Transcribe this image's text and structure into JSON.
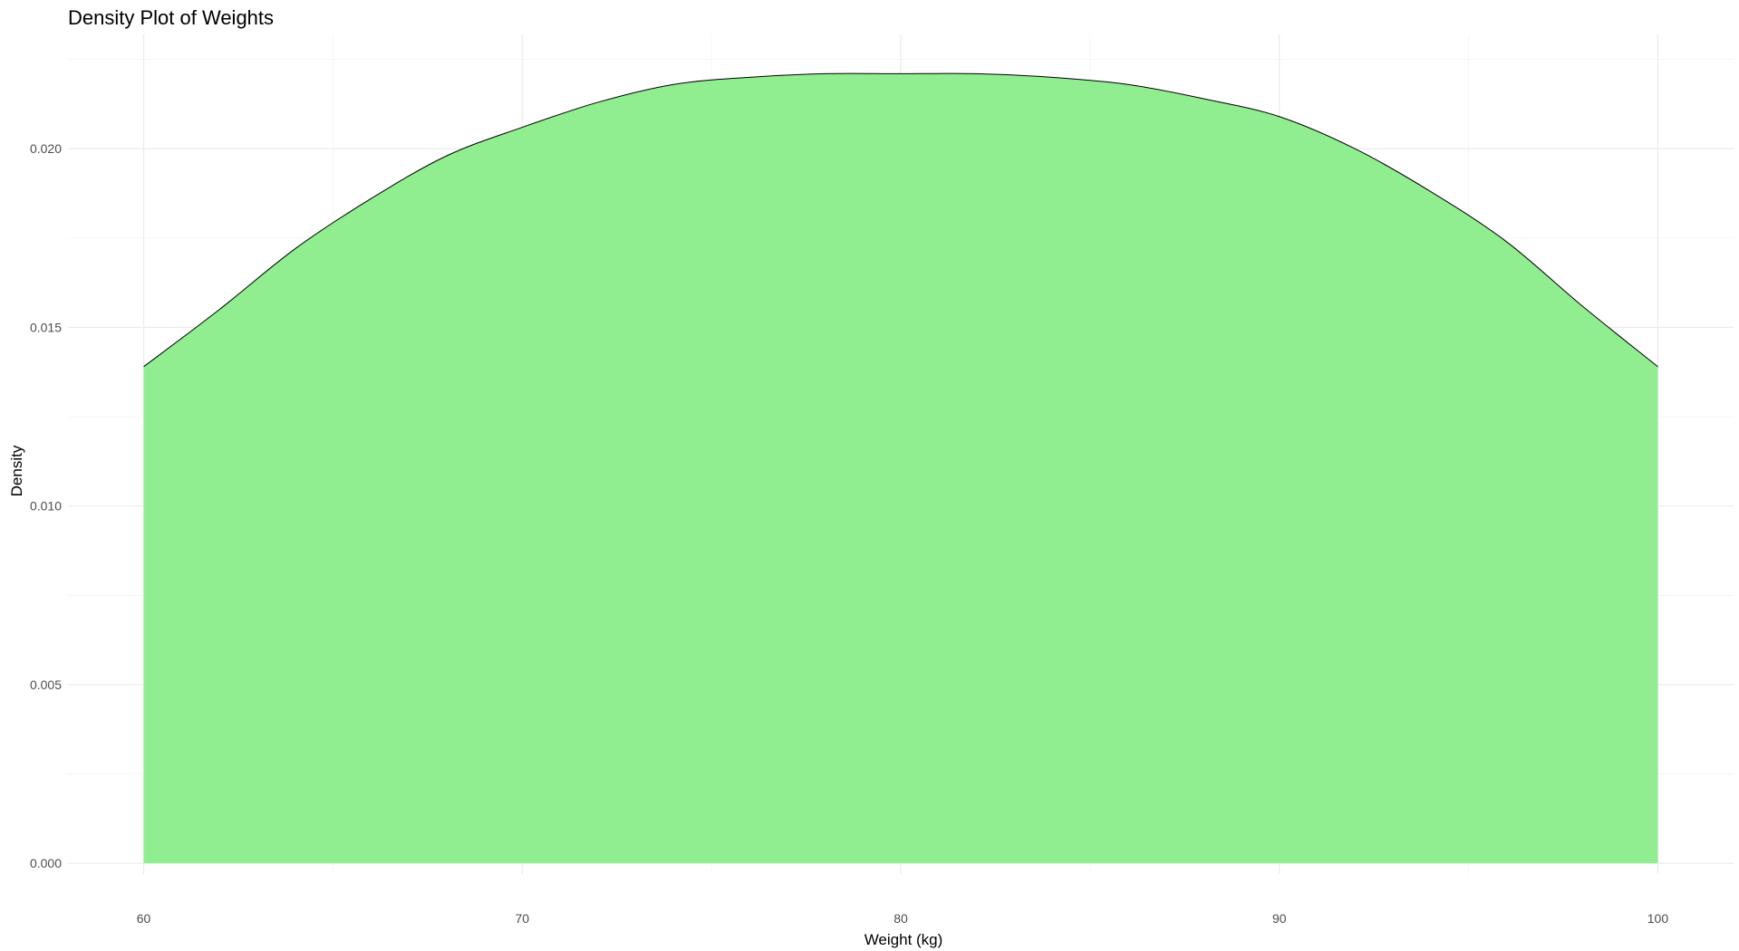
{
  "chart_data": {
    "type": "area",
    "title": "Density Plot of Weights",
    "xlabel": "Weight (kg)",
    "ylabel": "Density",
    "xlim": [
      58,
      102
    ],
    "ylim": [
      -0.0003,
      0.0232
    ],
    "x_ticks": [
      60,
      70,
      80,
      90,
      100
    ],
    "x_tick_labels": [
      "60",
      "70",
      "80",
      "90",
      "100"
    ],
    "y_ticks": [
      0.0,
      0.005,
      0.01,
      0.015,
      0.02
    ],
    "y_tick_labels": [
      "0.000",
      "0.005",
      "0.010",
      "0.015",
      "0.020"
    ],
    "grid": true,
    "legend": "none",
    "fill_color": "#90EE90",
    "line_color": "#000000",
    "series": [
      {
        "x": [
          60,
          62,
          64,
          66,
          68,
          70,
          72,
          74,
          76,
          78,
          80,
          82,
          84,
          86,
          88,
          90,
          92,
          94,
          96,
          98,
          100
        ],
        "y": [
          0.0139,
          0.0155,
          0.0172,
          0.0186,
          0.0198,
          0.0206,
          0.0213,
          0.0218,
          0.022,
          0.0221,
          0.0221,
          0.0221,
          0.022,
          0.0218,
          0.0214,
          0.0209,
          0.02,
          0.0188,
          0.0174,
          0.0156,
          0.0139
        ]
      }
    ]
  }
}
